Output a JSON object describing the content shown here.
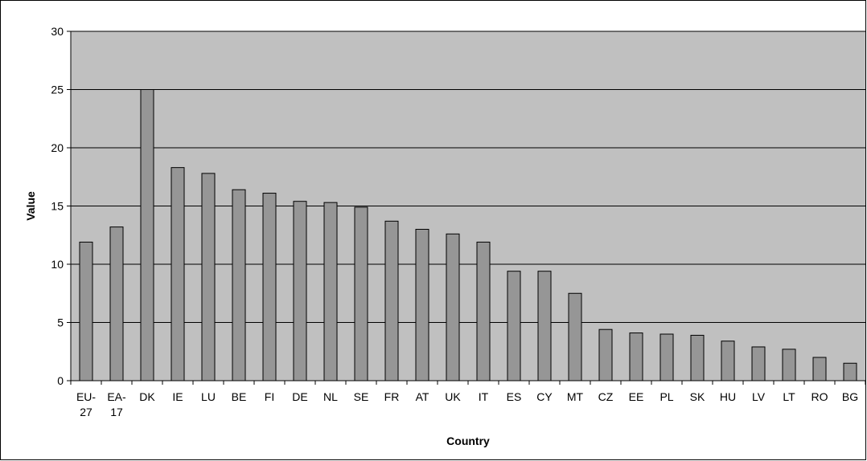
{
  "chart_data": {
    "type": "bar",
    "title": "",
    "xlabel": "Country",
    "ylabel": "Value",
    "ylim": [
      0,
      30
    ],
    "yticks": [
      0,
      5,
      10,
      15,
      20,
      25,
      30
    ],
    "grid": true,
    "legend": "none",
    "categories": [
      [
        "EU-",
        "27"
      ],
      [
        "EA-",
        "17"
      ],
      [
        "DK"
      ],
      [
        "IE"
      ],
      [
        "LU"
      ],
      [
        "BE"
      ],
      [
        "FI"
      ],
      [
        "DE"
      ],
      [
        "NL"
      ],
      [
        "SE"
      ],
      [
        "FR"
      ],
      [
        "AT"
      ],
      [
        "UK"
      ],
      [
        "IT"
      ],
      [
        "ES"
      ],
      [
        "CY"
      ],
      [
        "MT"
      ],
      [
        "CZ"
      ],
      [
        "EE"
      ],
      [
        "PL"
      ],
      [
        "SK"
      ],
      [
        "HU"
      ],
      [
        "LV"
      ],
      [
        "LT"
      ],
      [
        "RO"
      ],
      [
        "BG"
      ]
    ],
    "values": [
      11.9,
      13.2,
      25.0,
      18.3,
      17.8,
      16.4,
      16.1,
      15.4,
      15.3,
      14.9,
      13.7,
      13.0,
      12.6,
      11.9,
      9.4,
      9.4,
      7.5,
      4.4,
      4.1,
      4.0,
      3.9,
      3.4,
      2.9,
      2.7,
      2.0,
      1.5
    ],
    "colors": {
      "plot_background": "#c0c0c0",
      "bar_fill": "#969696",
      "bar_stroke": "#000000",
      "gridline": "#000000"
    }
  }
}
